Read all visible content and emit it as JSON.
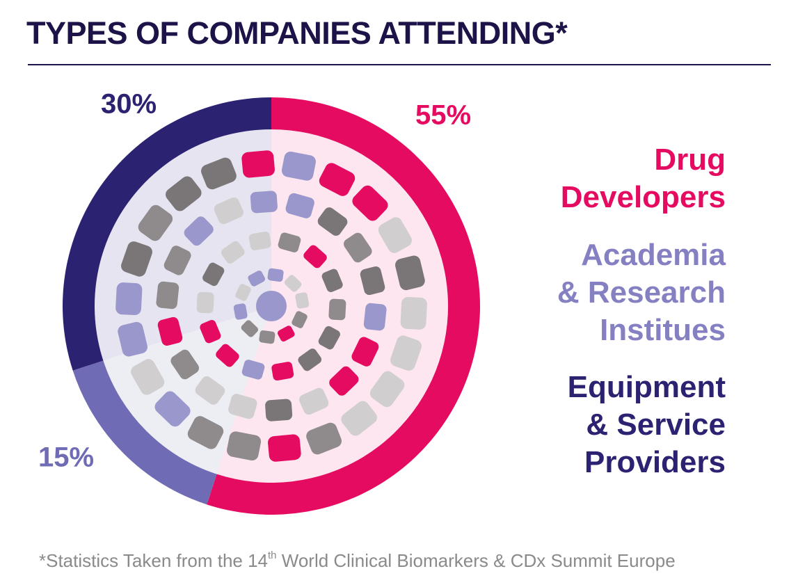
{
  "chart_data": {
    "type": "pie",
    "title": "TYPES OF COMPANIES ATTENDING*",
    "categories": [
      "Drug\nDevelopers",
      "Academia\n& Research\nInstitues",
      "Equipment\n& Service\nProviders"
    ],
    "values": [
      55,
      15,
      30
    ],
    "value_labels": [
      "55%",
      "15%",
      "30%"
    ],
    "colors": [
      "#e50b60",
      "#6f6cb5",
      "#2b2272"
    ],
    "footnote": {
      "before": "*Statistics Taken from the 14",
      "sup": "th",
      "after": " World Clinical Biomarkers & CDx Summit Europe"
    }
  }
}
